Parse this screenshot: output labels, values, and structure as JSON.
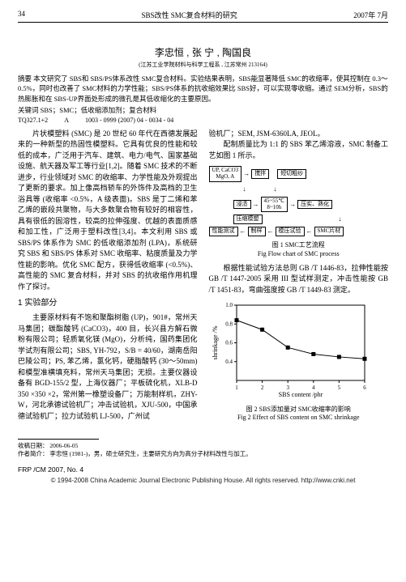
{
  "header": {
    "page_num": "34",
    "running_title": "SBS改性 SMC复合材料的研究",
    "issue_date": "2007年 7月"
  },
  "title": {
    "authors": "李忠恒 , 张  宁 , 陶国良",
    "affiliation": "(江苏工业学院材料与科学工程系 , 江苏常州  213164)"
  },
  "abstract": {
    "label": "摘要",
    "text": "本文研究了 SBS和 SBS/PS体系改性 SMC复合材料。实验结果表明，SBS能显著降低 SMC的收缩率，使其控制在 0.3～0.5%，同时也改善了 SMC材料的力学性能；SBS/PS体系的抗收缩效果比 SBS好，可以实现零收缩。通过 SEM分析，SBS的热膨胀和在 SBS-UP界面处形成的微孔是其低收缩化的主要原因。"
  },
  "keywords": {
    "label": "关键词",
    "text": "SBS；SMC；低收缩添加剂；复合材料"
  },
  "clc": {
    "code": "TQ327.1+2",
    "doc_code": "A",
    "article_id": "1003 - 0999 (2007) 04 - 0034 - 04"
  },
  "left_col": {
    "p1": "片状模塑料 (SMC) 是 20 世纪 60 年代在西德发展起来的一种新型的热固性模塑料。它具有优良的性能和较低的成本，广泛用于汽车、建筑、电力/电气、国家基础设施、航天器及军工等行业[1,2]。随着 SMC 技术的不断进步，行业领域对 SMC 的收缩率、力学性能及外观提出了更新的要求。加上像高档轿车的外饰件及高档的卫生浴具等 (收缩率 <0.5%，A 级表面)。SBS 是丁二烯和苯乙烯的嵌段共聚物，与大多数聚合物有较好的相容性，具有很低的固溶性，较高的拉伸强度、优越的表面质感和加工性，广泛用于塑料改性[3,4]。本文利用 SBS 或 SBS/PS 体系作为 SMC 的低收缩添加剂 (LPA)，系统研究 SBS 和 SBS/PS 体系对 SMC 收缩率、粘度质量及力学性能的影响。优化 SMC 配方，获得低收缩率 (<0.5%)、高性能的 SMC 复合材料，并对 SBS 的抗收缩作用机理作了探讨。",
    "sec1": "1  实验部分",
    "p2": "主要原材料有不饱和聚酯树脂 (UP)，901#，常州天马集团；碳酯酸钙 (CaCO3)，400 目，长兴县方解石微粉有限公司；轻质氧化镁 (MgO)，分析纯，国药集团化学试剂有限公司；SBS, YH-792，S/B = 40/60，湖南岳阳巴陵公司；PS, 苯乙烯，氯化钙，硬脂酸钙 (30～50mm) 和模型准横填充料，常州天马集团；无损。主要仪器设备有 BGD-155/2 型，上海仪器厂；平板硫化机，XLB-D 350 ×350 ×2，常州第一橡塑设备厂；万能制样机，ZHY-W，河北承德试验机厂；冲击试验机，XJU-500，中国承德试验机厂；拉力试验机 LJ-500，广州试"
  },
  "right_col": {
    "p1": "验机厂；SEM, JSM-6360LA, JEOL。",
    "p2": "配制质量比为 1:1 的 SBS 苯乙烯溶液，SMC 制备工艺如图 1 所示。",
    "flow": {
      "b1": "UP, CaCO3\nMgO, A",
      "b2": "搅拌",
      "b3": "短切粗纱",
      "b4": "浸渍",
      "b5": "45~55℃\n8~10h",
      "b6": "压实、熟化",
      "b7": "压缩模塑",
      "b8": "性能测试",
      "b9": "制样",
      "b10": "模压试验",
      "b11": "SMC片材"
    },
    "fig1_cap_cn": "图 1  SMC工艺流程",
    "fig1_cap_en": "Fig Flow chart of SMC process",
    "p3": "根据性能试验方法总则 GB /T 1446-83，拉伸性能按 GB /T 1447-2005 采用 III 型试样测定，冲击性能按 GB /T 1451-83，弯曲强度按 GB /T 1449-83 测定。",
    "chart": {
      "type": "line-scatter",
      "xlabel": "SBS content /phr",
      "ylabel": "shrinkage /%",
      "xlim": [
        1,
        6
      ],
      "ylim": [
        0.2,
        1.0
      ],
      "xtick": [
        1,
        2,
        3,
        4,
        5,
        6
      ],
      "ytick": [
        0.4,
        0.6,
        0.8,
        1.0
      ],
      "points_x": [
        1,
        2,
        3,
        4,
        5,
        6
      ],
      "points_y": [
        0.84,
        0.74,
        0.55,
        0.48,
        0.45,
        0.43
      ],
      "marker": "square",
      "marker_color": "#000000",
      "line_color": "#000000",
      "background_color": "#ffffff",
      "axis_color": "#000000"
    },
    "fig2_cap_cn": "图 2  SBS添加量对 SMC收缩率的影响",
    "fig2_cap_en": "Fig 2 Effect of SBS content on SMC shrinkage"
  },
  "footnotes": {
    "recv_label": "收稿日期：",
    "recv": "2006-06-05",
    "auth_label": "作者简介：",
    "auth": "李忠恒 (1981-)，男，硕士研究生，主要研究方向为高分子材料改性与加工。"
  },
  "bottom": {
    "left": "FRP /CM  2007, No. 4",
    "copyright": "© 1994-2008 China Academic Journal Electronic Publishing House. All rights reserved.   http://www.cnki.net"
  }
}
